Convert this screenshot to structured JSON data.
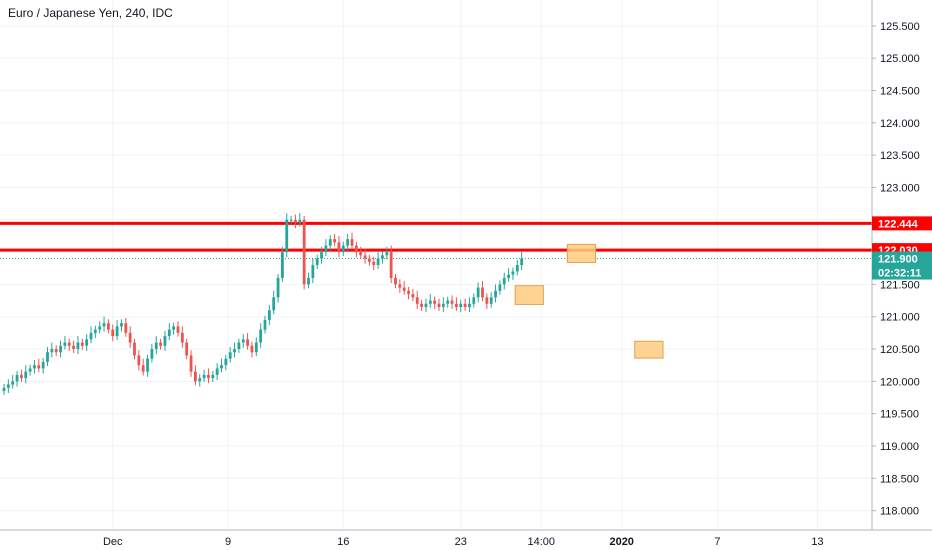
{
  "chart_data": {
    "type": "candlestick",
    "title": "Euro / Japanese Yen, 240, IDC",
    "y_ticks": [
      118.0,
      118.5,
      119.0,
      119.5,
      120.0,
      120.5,
      121.0,
      121.5,
      122.0,
      122.5,
      123.0,
      123.5,
      124.0,
      124.5,
      125.0,
      125.5
    ],
    "y_tick_labels": [
      "118.000",
      "118.500",
      "119.000",
      "119.500",
      "120.000",
      "120.500",
      "121.000",
      "121.500",
      "122.000",
      "122.500",
      "123.000",
      "123.500",
      "124.000",
      "124.500",
      "125.000",
      "125.500"
    ],
    "ylim": [
      117.7,
      125.9
    ],
    "x_ticks": [
      "Dec",
      "9",
      "16",
      "23",
      "14:00",
      "2020",
      "7",
      "13"
    ],
    "x_tick_bold": [
      false,
      false,
      false,
      false,
      false,
      true,
      false,
      false
    ],
    "horizontal_levels": [
      {
        "value": 122.444,
        "label": "122.444",
        "color": "#ff0000"
      },
      {
        "value": 122.03,
        "label": "122.030",
        "color": "#ff0000"
      }
    ],
    "last_price": {
      "value": 121.9,
      "label": "121.900",
      "countdown": "02:32:11",
      "color": "#26a69a"
    },
    "closes": [
      119.9,
      119.95,
      120.0,
      120.1,
      120.05,
      120.15,
      120.2,
      120.25,
      120.2,
      120.3,
      120.45,
      120.5,
      120.45,
      120.55,
      120.6,
      120.55,
      120.5,
      120.6,
      120.55,
      120.65,
      120.75,
      120.8,
      120.85,
      120.9,
      120.8,
      120.7,
      120.85,
      120.9,
      120.75,
      120.6,
      120.4,
      120.25,
      120.15,
      120.35,
      120.5,
      120.6,
      120.55,
      120.7,
      120.8,
      120.85,
      120.75,
      120.6,
      120.4,
      120.15,
      120.0,
      120.05,
      120.1,
      120.05,
      120.1,
      120.2,
      120.25,
      120.35,
      120.45,
      120.5,
      120.6,
      120.65,
      120.55,
      120.45,
      120.6,
      120.8,
      120.95,
      121.1,
      121.3,
      121.6,
      122.0,
      122.5,
      122.5,
      122.45,
      122.5,
      121.5,
      121.6,
      121.8,
      121.9,
      122.0,
      122.1,
      122.2,
      122.15,
      122.0,
      122.1,
      122.2,
      122.1,
      122.0,
      121.95,
      121.9,
      121.85,
      121.8,
      121.9,
      121.95,
      122.0,
      121.6,
      121.5,
      121.45,
      121.4,
      121.35,
      121.3,
      121.2,
      121.15,
      121.2,
      121.25,
      121.2,
      121.15,
      121.2,
      121.25,
      121.2,
      121.15,
      121.2,
      121.15,
      121.2,
      121.3,
      121.45,
      121.3,
      121.2,
      121.3,
      121.4,
      121.5,
      121.6,
      121.65,
      121.7,
      121.8,
      121.9
    ],
    "rect_annotations": [
      {
        "value_top": 122.12,
        "value_bottom": 121.84,
        "slot_start": 129.5,
        "slot_end": 136
      },
      {
        "value_top": 121.48,
        "value_bottom": 121.19,
        "slot_start": 117.5,
        "slot_end": 124
      },
      {
        "value_top": 120.62,
        "value_bottom": 120.36,
        "slot_start": 145,
        "slot_end": 151.5
      }
    ]
  }
}
